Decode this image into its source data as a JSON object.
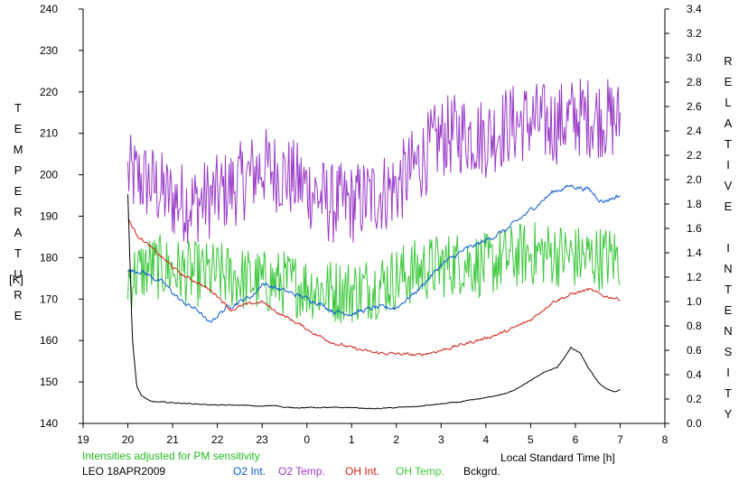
{
  "chart_data": {
    "type": "line",
    "left_axis": {
      "label_letters": "T\nE\nM\nP\nE\nR\nA\nT\nU\nR\nE",
      "unit": "[K]",
      "ylim": [
        140,
        240
      ],
      "ticks": [
        "140",
        "150",
        "160",
        "170",
        "180",
        "190",
        "200",
        "210",
        "220",
        "230",
        "240"
      ]
    },
    "right_axis": {
      "label_letters": "R\nE\nL\nA\nT\nI\nV\nE\n\nI\nN\nT\nE\nN\nS\nI\nT\nY",
      "ylim": [
        0.0,
        3.4
      ],
      "ticks": [
        "0.0",
        "0.2",
        "0.4",
        "0.6",
        "0.8",
        "1.0",
        "1.2",
        "1.4",
        "1.6",
        "1.8",
        "2.0",
        "2.2",
        "2.4",
        "2.6",
        "2.8",
        "3.0",
        "3.2",
        "3.4"
      ]
    },
    "x_axis": {
      "label": "Local Standard Time [h]",
      "xlim": [
        19,
        32
      ],
      "ticks": [
        "19",
        "20",
        "21",
        "22",
        "23",
        "0",
        "1",
        "2",
        "3",
        "4",
        "5",
        "6",
        "7",
        "8"
      ]
    },
    "note": "Intensities adjusted for PM sensitivity",
    "site_date": "LEO 18APR2009",
    "series": [
      {
        "name": "O2 Int.",
        "axis": "right",
        "color": "#0a5ad7",
        "noise": 0.03,
        "x": [
          20.0,
          20.3,
          20.8,
          21.2,
          21.6,
          21.8,
          22.2,
          22.5,
          22.8,
          23.0,
          23.4,
          23.8,
          24.2,
          24.6,
          25.0,
          25.5,
          26.0,
          26.5,
          27.0,
          27.5,
          28.0,
          28.5,
          29.0,
          29.5,
          29.9,
          30.3,
          30.6,
          31.0
        ],
        "values": [
          1.25,
          1.25,
          1.15,
          1.0,
          0.92,
          0.82,
          0.95,
          1.0,
          1.05,
          1.15,
          1.1,
          1.05,
          1.0,
          0.92,
          0.9,
          0.95,
          0.95,
          1.1,
          1.3,
          1.42,
          1.5,
          1.6,
          1.75,
          1.9,
          1.95,
          1.92,
          1.82,
          1.87
        ]
      },
      {
        "name": "O2 Temp.",
        "axis": "left",
        "color": "#9a3cc8",
        "noise": 10,
        "x": [
          20.0,
          20.5,
          21.0,
          21.5,
          22.0,
          22.5,
          23.0,
          23.5,
          24.0,
          24.5,
          25.0,
          25.5,
          26.0,
          26.5,
          27.0,
          27.5,
          28.0,
          28.5,
          29.0,
          29.5,
          30.0,
          30.5,
          31.0
        ],
        "values": [
          200,
          198,
          194,
          193,
          195,
          198,
          202,
          200,
          197,
          193,
          193,
          195,
          197,
          203,
          209,
          210,
          209,
          212,
          213,
          212,
          214,
          214,
          213
        ]
      },
      {
        "name": "OH Int.",
        "axis": "right",
        "color": "#d21e14",
        "noise": 0.02,
        "x": [
          20.0,
          20.2,
          20.5,
          20.8,
          21.2,
          21.6,
          22.0,
          22.3,
          22.6,
          23.0,
          23.3,
          23.8,
          24.2,
          24.6,
          25.0,
          25.5,
          26.0,
          26.5,
          27.0,
          27.5,
          28.0,
          28.5,
          29.0,
          29.5,
          30.0,
          30.3,
          30.6,
          31.0
        ],
        "values": [
          1.68,
          1.55,
          1.45,
          1.35,
          1.22,
          1.15,
          1.05,
          0.93,
          0.97,
          1.0,
          0.92,
          0.82,
          0.73,
          0.66,
          0.62,
          0.58,
          0.57,
          0.56,
          0.6,
          0.65,
          0.7,
          0.76,
          0.85,
          1.0,
          1.07,
          1.1,
          1.05,
          1.02
        ]
      },
      {
        "name": "OH Temp.",
        "axis": "left",
        "color": "#3cc83c",
        "noise": 8,
        "x": [
          20.0,
          20.5,
          21.0,
          21.5,
          22.0,
          22.5,
          23.0,
          23.5,
          24.0,
          24.5,
          25.0,
          25.5,
          26.0,
          26.5,
          27.0,
          27.5,
          28.0,
          28.5,
          29.0,
          29.5,
          30.0,
          30.5,
          31.0
        ],
        "values": [
          175,
          178,
          177,
          176,
          176,
          175,
          174,
          174,
          173,
          172,
          172,
          173,
          175,
          177,
          178,
          179,
          178,
          180,
          181,
          181,
          180,
          180,
          180
        ]
      },
      {
        "name": "Bckgrd.",
        "axis": "right",
        "color": "#000000",
        "noise": 0.006,
        "x": [
          20.0,
          20.1,
          20.2,
          20.3,
          20.5,
          21.0,
          21.5,
          22.0,
          22.5,
          23.0,
          23.3,
          23.5,
          24.0,
          24.5,
          25.0,
          25.5,
          26.0,
          26.5,
          27.0,
          27.5,
          28.0,
          28.5,
          29.0,
          29.3,
          29.6,
          29.9,
          30.1,
          30.3,
          30.5,
          30.7,
          30.9,
          31.0
        ],
        "values": [
          1.88,
          0.7,
          0.3,
          0.23,
          0.18,
          0.17,
          0.16,
          0.15,
          0.15,
          0.14,
          0.15,
          0.13,
          0.13,
          0.13,
          0.13,
          0.12,
          0.13,
          0.14,
          0.16,
          0.18,
          0.21,
          0.25,
          0.35,
          0.42,
          0.46,
          0.62,
          0.58,
          0.45,
          0.34,
          0.28,
          0.26,
          0.28
        ]
      }
    ]
  }
}
